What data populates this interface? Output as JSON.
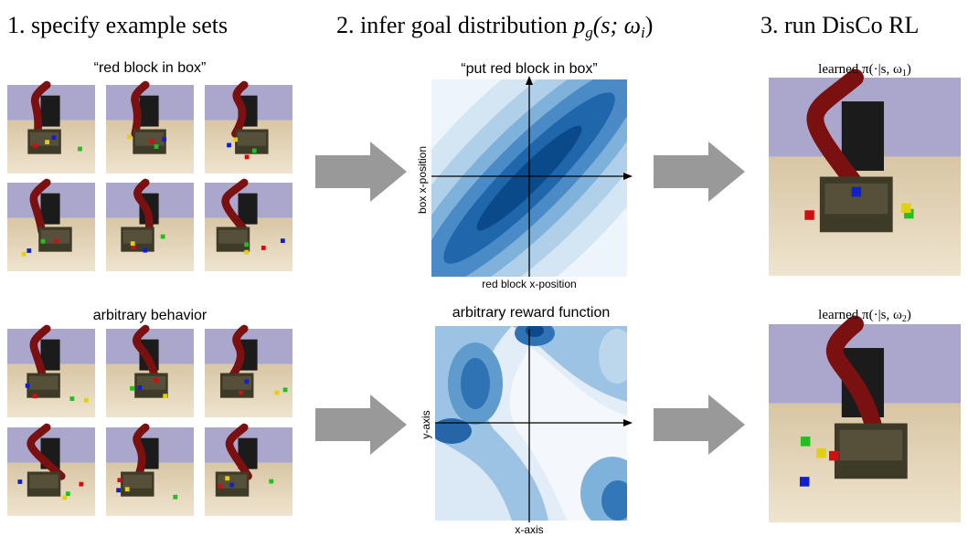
{
  "header": {
    "step1": "1. specify example sets",
    "step2": {
      "text": "2. infer goal distribution",
      "math": [
        "p",
        "g",
        "(s; ω",
        "i",
        ")"
      ]
    },
    "step3": "3. run DisCo RL"
  },
  "examples": {
    "set1": "“red block in box”",
    "set2": "arbitrary behavior"
  },
  "plots": {
    "plot1": {
      "title": "“put red block in box”",
      "ylabel": "box x-position",
      "xlabel": "red block x-position"
    },
    "plot2": {
      "title": "arbitrary reward function",
      "ylabel": "y-axis",
      "xlabel": "x-axis"
    }
  },
  "policies": {
    "policy1": [
      "learned π(·|s, ω",
      "1",
      ")"
    ],
    "policy2": [
      "learned π(·|s, ω",
      "2",
      ")"
    ]
  }
}
